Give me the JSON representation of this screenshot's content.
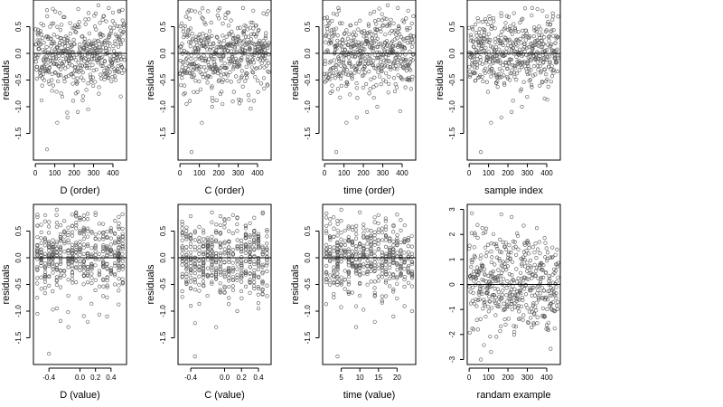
{
  "style": {
    "point_color": "#555555",
    "axis_color": "#000000",
    "background": "#ffffff"
  },
  "chart_data": [
    {
      "type": "scatter",
      "id": "d-order",
      "xlabel": "D (order)",
      "ylabel": "residuals",
      "xlim": [
        -10,
        470
      ],
      "ylim": [
        -2.0,
        1.0
      ],
      "xticks": [
        0,
        100,
        200,
        300,
        400
      ],
      "yticks": [
        0.5,
        0.0,
        -0.5,
        -1.0,
        -1.5
      ],
      "yticklabels": [
        "0.5",
        "0.0",
        "-0.5",
        "-1.0",
        "-1.5"
      ],
      "hline": 0,
      "mode": "index",
      "n": 460,
      "spread": 0.35,
      "extreme": [
        -1.8,
        -1.3,
        -1.2,
        -1.1,
        -1.05,
        0.9,
        0.85,
        0.8
      ],
      "seed": 11
    },
    {
      "type": "scatter",
      "id": "c-order",
      "xlabel": "C (order)",
      "ylabel": "residuals",
      "xlim": [
        -10,
        470
      ],
      "ylim": [
        -2.0,
        1.0
      ],
      "xticks": [
        0,
        100,
        200,
        300,
        400
      ],
      "yticks": [
        0.5,
        0.0,
        -0.5,
        -1.0,
        -1.5
      ],
      "yticklabels": [
        "0.5",
        "0.0",
        "-0.5",
        "-1.0",
        "-1.5"
      ],
      "hline": 0,
      "mode": "index",
      "n": 460,
      "spread": 0.35,
      "extreme": [
        -1.85,
        -1.3,
        -1.0,
        -0.95,
        -0.9,
        0.85,
        0.8,
        0.75
      ],
      "seed": 23
    },
    {
      "type": "scatter",
      "id": "time-order",
      "xlabel": "time (order)",
      "ylabel": "residuals",
      "xlim": [
        -10,
        470
      ],
      "ylim": [
        -2.0,
        1.0
      ],
      "xticks": [
        0,
        100,
        200,
        300,
        400
      ],
      "yticks": [
        0.5,
        0.0,
        -0.5,
        -1.0,
        -1.5
      ],
      "yticklabels": [
        "0.5",
        "0.0",
        "-0.5",
        "-1.0",
        "-1.5"
      ],
      "hline": 0,
      "mode": "index",
      "n": 460,
      "spread": 0.35,
      "extreme": [
        -1.85,
        -1.3,
        -1.2,
        -1.1,
        -1.0,
        0.9,
        0.85,
        0.8
      ],
      "seed": 37
    },
    {
      "type": "scatter",
      "id": "sample-index",
      "xlabel": "sample index",
      "ylabel": "residuals",
      "xlim": [
        -10,
        470
      ],
      "ylim": [
        -2.0,
        1.0
      ],
      "xticks": [
        0,
        100,
        200,
        300,
        400
      ],
      "yticks": [
        0.5,
        0.0,
        -0.5,
        -1.0,
        -1.5
      ],
      "yticklabels": [
        "0.5",
        "0.0",
        "-0.5",
        "-1.0",
        "-1.5"
      ],
      "hline": 0,
      "mode": "index",
      "n": 460,
      "spread": 0.35,
      "extreme": [
        -1.85,
        -1.3,
        -1.2,
        -1.1,
        -1.0,
        0.85,
        0.8,
        0.75
      ],
      "seed": 51
    },
    {
      "type": "scatter",
      "id": "d-value",
      "xlabel": "D (value)",
      "ylabel": "residuals",
      "xlim": [
        -0.6,
        0.6
      ],
      "ylim": [
        -2.0,
        1.0
      ],
      "xticks": [
        -0.4,
        0.0,
        0.2,
        0.4
      ],
      "xticklabels": [
        "-0.4",
        "0.0",
        "0.2",
        "0.4"
      ],
      "yticks": [
        0.5,
        0.0,
        -0.5,
        -1.0,
        -1.5
      ],
      "yticklabels": [
        "0.5",
        "0.0",
        "-0.5",
        "-1.0",
        "-1.5"
      ],
      "hline": 0,
      "mode": "columns",
      "columns": [
        -0.55,
        -0.5,
        -0.45,
        -0.4,
        -0.35,
        -0.3,
        -0.25,
        -0.2,
        -0.15,
        -0.1,
        -0.05,
        0.0,
        0.05,
        0.1,
        0.15,
        0.2,
        0.25,
        0.3,
        0.35,
        0.4,
        0.45,
        0.5,
        0.55
      ],
      "n": 460,
      "spread": 0.35,
      "extreme": [
        -1.8,
        -1.3,
        -1.2,
        -1.1,
        -1.05,
        0.9,
        0.85,
        0.8
      ],
      "seed": 67
    },
    {
      "type": "scatter",
      "id": "c-value",
      "xlabel": "C (value)",
      "ylabel": "residuals",
      "xlim": [
        -0.55,
        0.55
      ],
      "ylim": [
        -2.0,
        1.0
      ],
      "xticks": [
        -0.4,
        0.0,
        0.2,
        0.4
      ],
      "xticklabels": [
        "-0.4",
        "0.0",
        "0.2",
        "0.4"
      ],
      "yticks": [
        0.5,
        0.0,
        -0.5,
        -1.0,
        -1.5
      ],
      "yticklabels": [
        "0.5",
        "0.0",
        "-0.5",
        "-1.0",
        "-1.5"
      ],
      "hline": 0,
      "mode": "columns",
      "columns": [
        -0.5,
        -0.45,
        -0.4,
        -0.35,
        -0.3,
        -0.25,
        -0.2,
        -0.15,
        -0.1,
        -0.05,
        0.0,
        0.05,
        0.1,
        0.15,
        0.2,
        0.25,
        0.3,
        0.35,
        0.4,
        0.45,
        0.5
      ],
      "n": 460,
      "spread": 0.35,
      "extreme": [
        -1.85,
        -1.3,
        -1.0,
        -0.95,
        -0.9,
        0.85,
        0.8,
        0.75
      ],
      "seed": 79
    },
    {
      "type": "scatter",
      "id": "time-value",
      "xlabel": "time (value)",
      "ylabel": "residuals",
      "xlim": [
        0,
        25
      ],
      "ylim": [
        -2.0,
        1.0
      ],
      "xticks": [
        5,
        10,
        15,
        20
      ],
      "yticks": [
        0.5,
        0.0,
        -0.5,
        -1.0,
        -1.5
      ],
      "yticklabels": [
        "0.5",
        "0.0",
        "-0.5",
        "-1.0",
        "-1.5"
      ],
      "hline": 0,
      "mode": "columns",
      "columns": [
        1,
        2,
        3,
        4,
        5,
        6,
        7,
        8,
        9,
        10,
        11,
        12,
        13,
        14,
        15,
        16,
        17,
        18,
        19,
        20,
        21,
        22,
        23,
        24
      ],
      "n": 460,
      "spread": 0.35,
      "extreme": [
        -1.85,
        -1.3,
        -1.2,
        -1.1,
        -1.0,
        0.9,
        0.85,
        0.8
      ],
      "seed": 83
    },
    {
      "type": "scatter",
      "id": "random-example",
      "xlabel": "randam example",
      "ylabel": "",
      "xlim": [
        -10,
        470
      ],
      "ylim": [
        -3.2,
        3.2
      ],
      "xticks": [
        0,
        100,
        200,
        300,
        400
      ],
      "yticks": [
        3,
        2,
        1,
        0,
        -1,
        -2,
        -3
      ],
      "yticklabels": [
        "3",
        "2",
        "1",
        "0",
        "-1",
        "-2",
        "-3"
      ],
      "hline": 0,
      "mode": "index",
      "n": 460,
      "spread": 1.0,
      "extreme": [
        -3.0,
        -2.7,
        2.8,
        2.7
      ],
      "seed": 97
    }
  ]
}
